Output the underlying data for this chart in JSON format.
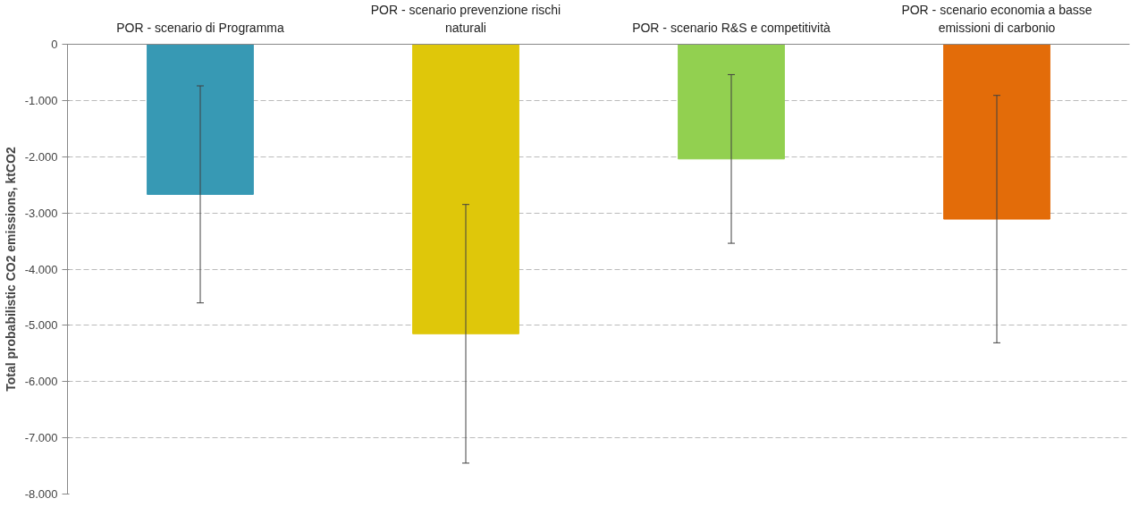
{
  "chart_data": {
    "type": "bar",
    "ylabel": "Total probabilistic CO2 emissions, ktCO2",
    "categories": [
      "POR - scenario di Programma",
      "POR - scenario prevenzione rischi naturali",
      "POR - scenario R&S e competitività",
      "POR - scenario economia a basse emissioni di carbonio"
    ],
    "values": [
      -2670,
      -5150,
      -2040,
      -3110
    ],
    "errors": [
      1930,
      2300,
      1500,
      2200
    ],
    "colors": [
      "#3799b4",
      "#dfc70a",
      "#92d050",
      "#e36c09"
    ],
    "ylim": [
      -8000,
      0
    ],
    "yticks": [
      {
        "value": -8000,
        "label": "-8.000"
      },
      {
        "value": -7000,
        "label": "-7.000"
      },
      {
        "value": -6000,
        "label": "-6.000"
      },
      {
        "value": -5000,
        "label": "-5.000"
      },
      {
        "value": -4000,
        "label": "-4.000"
      },
      {
        "value": -3000,
        "label": "-3.000"
      },
      {
        "value": -2000,
        "label": "-2.000"
      },
      {
        "value": -1000,
        "label": "-1.000"
      },
      {
        "value": 0,
        "label": "0"
      }
    ],
    "grid": "y"
  }
}
